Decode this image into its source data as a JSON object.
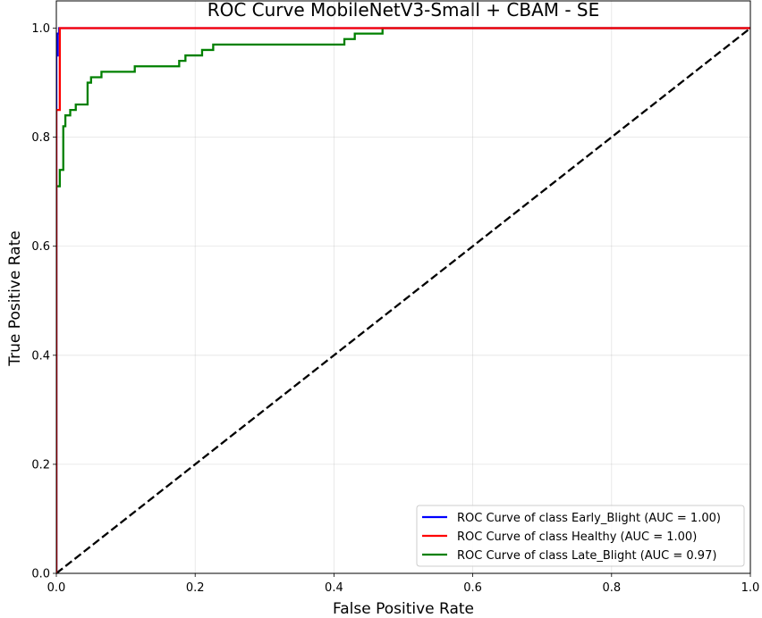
{
  "chart_data": {
    "type": "line",
    "title": "ROC Curve MobileNetV3-Small + CBAM - SE",
    "xlabel": "False Positive Rate",
    "ylabel": "True Positive Rate",
    "xlim": [
      0.0,
      1.0
    ],
    "ylim": [
      0.0,
      1.05
    ],
    "xticks": [
      "0.0",
      "0.2",
      "0.4",
      "0.6",
      "0.8",
      "1.0"
    ],
    "yticks": [
      "0.0",
      "0.2",
      "0.4",
      "0.6",
      "0.8",
      "1.0"
    ],
    "grid": true,
    "legend_position": "bottom-right",
    "series": [
      {
        "name": "ROC Curve of class Early_Blight (AUC = 1.00)",
        "color": "#0000ff",
        "x": [
          0.0,
          0.0,
          0.002,
          0.002,
          0.004,
          0.004,
          1.0
        ],
        "y": [
          0.0,
          0.95,
          0.95,
          0.99,
          0.99,
          1.0,
          1.0
        ]
      },
      {
        "name": "ROC Curve of class Healthy (AUC = 1.00)",
        "color": "#ff0000",
        "x": [
          0.0,
          0.0,
          0.005,
          0.005,
          0.47,
          1.0
        ],
        "y": [
          0.0,
          0.85,
          0.85,
          1.0,
          1.0,
          1.0
        ]
      },
      {
        "name": "ROC Curve of class Late_Blight (AUC = 0.97)",
        "color": "#008000",
        "x": [
          0.0,
          0.0,
          0.005,
          0.005,
          0.01,
          0.01,
          0.013,
          0.013,
          0.02,
          0.02,
          0.028,
          0.028,
          0.032,
          0.032,
          0.045,
          0.045,
          0.05,
          0.05,
          0.065,
          0.065,
          0.113,
          0.113,
          0.177,
          0.177,
          0.186,
          0.186,
          0.21,
          0.21,
          0.226,
          0.226,
          0.415,
          0.415,
          0.43,
          0.43,
          0.47,
          0.47,
          1.0
        ],
        "y": [
          0.0,
          0.71,
          0.71,
          0.74,
          0.74,
          0.82,
          0.82,
          0.84,
          0.84,
          0.85,
          0.85,
          0.86,
          0.86,
          0.86,
          0.86,
          0.9,
          0.9,
          0.91,
          0.91,
          0.92,
          0.92,
          0.93,
          0.93,
          0.94,
          0.94,
          0.95,
          0.95,
          0.96,
          0.96,
          0.97,
          0.97,
          0.98,
          0.98,
          0.99,
          0.99,
          1.0,
          1.0
        ]
      },
      {
        "name": "",
        "color": "#000000",
        "dashed": true,
        "x": [
          0.0,
          1.0
        ],
        "y": [
          0.0,
          1.0
        ]
      }
    ]
  }
}
